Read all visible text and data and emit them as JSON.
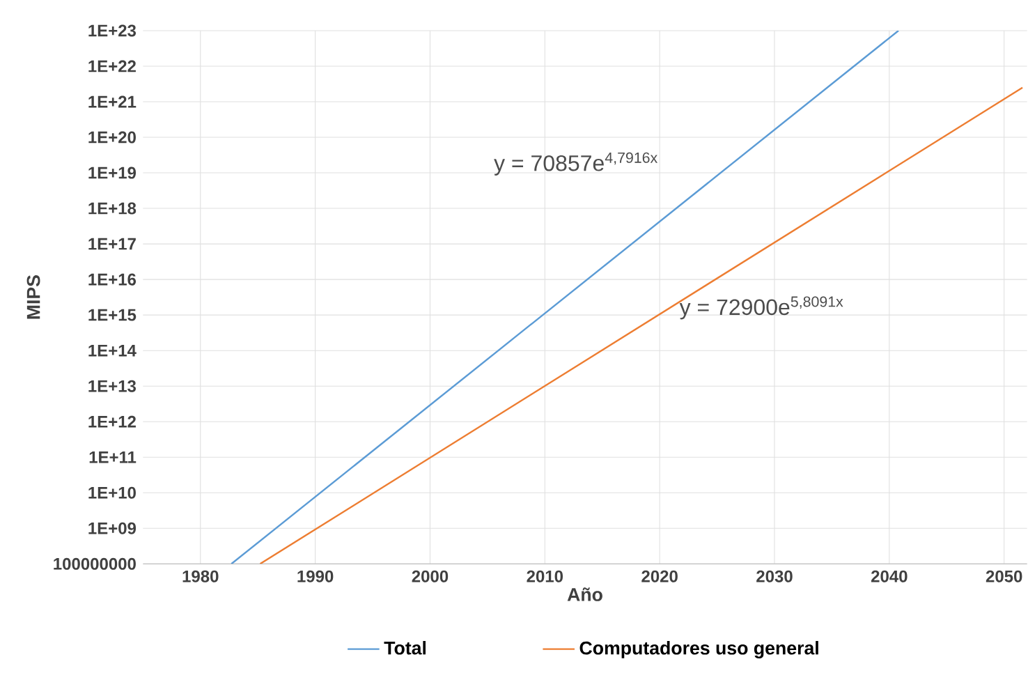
{
  "chart_data": {
    "type": "line",
    "xlabel": "Año",
    "ylabel": "MIPS",
    "series": [
      {
        "name": "Total",
        "color": "#5b9bd5",
        "x": [
          1982.7,
          2040.8
        ],
        "values": [
          100000000.0,
          1e+23
        ]
      },
      {
        "name": "Computadores uso general",
        "color": "#ed7d31",
        "x": [
          1985.2,
          2051.6
        ],
        "values": [
          100000000.0,
          2.5e+21
        ]
      }
    ],
    "xlim": [
      1975,
      2052
    ],
    "xticks": [
      1980,
      1990,
      2000,
      2010,
      2020,
      2030,
      2040,
      2050
    ],
    "ylim": [
      100000000.0,
      1e+23
    ],
    "log": "y",
    "yticks": [
      100000000,
      {
        "value": 1000000000.0,
        "label": "1E+09"
      },
      {
        "value": 10000000000.0,
        "label": "1E+10"
      },
      {
        "value": 100000000000.0,
        "label": "1E+11"
      },
      {
        "value": 1000000000000.0,
        "label": "1E+12"
      },
      {
        "value": 10000000000000.0,
        "label": "1E+13"
      },
      {
        "value": 100000000000000.0,
        "label": "1E+14"
      },
      {
        "value": 1000000000000000.0,
        "label": "1E+15"
      },
      {
        "value": 1e+16,
        "label": "1E+16"
      },
      {
        "value": 1e+17,
        "label": "1E+17"
      },
      {
        "value": 1e+18,
        "label": "1E+18"
      },
      {
        "value": 1e+19,
        "label": "1E+19"
      },
      {
        "value": 1e+20,
        "label": "1E+20"
      },
      {
        "value": 1e+21,
        "label": "1E+21"
      },
      {
        "value": 1e+22,
        "label": "1E+22"
      },
      {
        "value": 1e+23,
        "label": "1E+23"
      }
    ],
    "annotations": [
      "y = 70857e$^{4,7916x}$",
      "y = 72900e$^{5,8091x}$"
    ],
    "grid": true,
    "legend": "bottom",
    "marker": "none",
    "line_style": "solid"
  }
}
